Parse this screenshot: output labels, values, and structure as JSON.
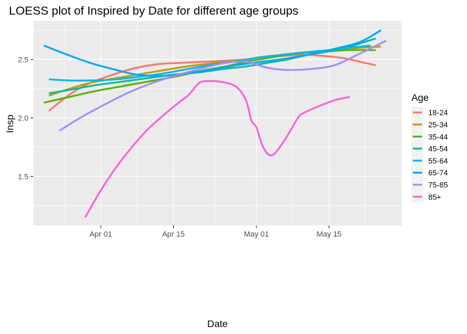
{
  "chart_data": {
    "type": "line",
    "title": "LOESS plot of Inspired by Date for different age groups",
    "xlabel": "Date",
    "ylabel": "Insp",
    "x_ticks": [
      "Apr 01",
      "Apr 15",
      "May 01",
      "May 15"
    ],
    "x_tick_values": [
      "2020-04-01",
      "2020-04-15",
      "2020-05-01",
      "2020-05-15"
    ],
    "y_ticks": [
      "1.5",
      "2.0",
      "2.5"
    ],
    "y_tick_values": [
      1.5,
      2.0,
      2.5
    ],
    "xlim": [
      "2020-03-19",
      "2020-05-29"
    ],
    "ylim": [
      1.08,
      2.83
    ],
    "grid": true,
    "legend": {
      "title": "Age",
      "position": "right"
    },
    "series": [
      {
        "name": "18-24",
        "color": "#F8766D",
        "points": [
          [
            "2020-03-22",
            2.06
          ],
          [
            "2020-03-26",
            2.2
          ],
          [
            "2020-03-30",
            2.3
          ],
          [
            "2020-04-04",
            2.38
          ],
          [
            "2020-04-08",
            2.43
          ],
          [
            "2020-04-12",
            2.46
          ],
          [
            "2020-04-16",
            2.47
          ],
          [
            "2020-04-21",
            2.48
          ],
          [
            "2020-04-25",
            2.49
          ],
          [
            "2020-04-29",
            2.5
          ],
          [
            "2020-05-02",
            2.52
          ],
          [
            "2020-05-06",
            2.53
          ],
          [
            "2020-05-10",
            2.54
          ],
          [
            "2020-05-14",
            2.53
          ],
          [
            "2020-05-18",
            2.51
          ],
          [
            "2020-05-21",
            2.48
          ],
          [
            "2020-05-24",
            2.45
          ]
        ]
      },
      {
        "name": "25-34",
        "color": "#C49A00",
        "points": [
          [
            "2020-03-22",
            2.19
          ],
          [
            "2020-03-26",
            2.25
          ],
          [
            "2020-03-30",
            2.3
          ],
          [
            "2020-04-04",
            2.34
          ],
          [
            "2020-04-08",
            2.37
          ],
          [
            "2020-04-12",
            2.4
          ],
          [
            "2020-04-16",
            2.43
          ],
          [
            "2020-04-21",
            2.46
          ],
          [
            "2020-04-25",
            2.48
          ],
          [
            "2020-04-29",
            2.5
          ],
          [
            "2020-05-02",
            2.52
          ],
          [
            "2020-05-06",
            2.54
          ],
          [
            "2020-05-10",
            2.56
          ],
          [
            "2020-05-14",
            2.57
          ],
          [
            "2020-05-18",
            2.59
          ],
          [
            "2020-05-21",
            2.6
          ],
          [
            "2020-05-25",
            2.61
          ]
        ]
      },
      {
        "name": "35-44",
        "color": "#53B400",
        "points": [
          [
            "2020-03-21",
            2.13
          ],
          [
            "2020-03-26",
            2.18
          ],
          [
            "2020-03-31",
            2.23
          ],
          [
            "2020-04-05",
            2.27
          ],
          [
            "2020-04-10",
            2.31
          ],
          [
            "2020-04-15",
            2.35
          ],
          [
            "2020-04-20",
            2.4
          ],
          [
            "2020-04-25",
            2.44
          ],
          [
            "2020-04-29",
            2.48
          ],
          [
            "2020-05-03",
            2.51
          ],
          [
            "2020-05-07",
            2.54
          ],
          [
            "2020-05-11",
            2.56
          ],
          [
            "2020-05-15",
            2.57
          ],
          [
            "2020-05-19",
            2.58
          ],
          [
            "2020-05-24",
            2.58
          ]
        ]
      },
      {
        "name": "45-54",
        "color": "#00C094",
        "points": [
          [
            "2020-03-22",
            2.21
          ],
          [
            "2020-03-26",
            2.24
          ],
          [
            "2020-03-31",
            2.28
          ],
          [
            "2020-04-05",
            2.31
          ],
          [
            "2020-04-10",
            2.34
          ],
          [
            "2020-04-15",
            2.37
          ],
          [
            "2020-04-20",
            2.39
          ],
          [
            "2020-04-25",
            2.42
          ],
          [
            "2020-04-29",
            2.44
          ],
          [
            "2020-05-03",
            2.47
          ],
          [
            "2020-05-07",
            2.5
          ],
          [
            "2020-05-11",
            2.54
          ],
          [
            "2020-05-15",
            2.57
          ],
          [
            "2020-05-19",
            2.61
          ],
          [
            "2020-05-24",
            2.68
          ]
        ]
      },
      {
        "name": "55-64",
        "color": "#00B6EB",
        "points": [
          [
            "2020-03-22",
            2.33
          ],
          [
            "2020-03-26",
            2.32
          ],
          [
            "2020-03-30",
            2.32
          ],
          [
            "2020-04-04",
            2.33
          ],
          [
            "2020-04-08",
            2.35
          ],
          [
            "2020-04-13",
            2.38
          ],
          [
            "2020-04-18",
            2.42
          ],
          [
            "2020-04-23",
            2.46
          ],
          [
            "2020-04-28",
            2.49
          ],
          [
            "2020-05-02",
            2.52
          ],
          [
            "2020-05-06",
            2.54
          ],
          [
            "2020-05-10",
            2.56
          ],
          [
            "2020-05-15",
            2.58
          ],
          [
            "2020-05-19",
            2.6
          ],
          [
            "2020-05-23",
            2.62
          ]
        ]
      },
      {
        "name": "65-74",
        "color": "#06A4FF",
        "points": [
          [
            "2020-03-21",
            2.62
          ],
          [
            "2020-03-25",
            2.55
          ],
          [
            "2020-03-30",
            2.47
          ],
          [
            "2020-04-04",
            2.41
          ],
          [
            "2020-04-08",
            2.37
          ],
          [
            "2020-04-13",
            2.36
          ],
          [
            "2020-04-17",
            2.38
          ],
          [
            "2020-04-22",
            2.41
          ],
          [
            "2020-04-27",
            2.45
          ],
          [
            "2020-05-02",
            2.48
          ],
          [
            "2020-05-07",
            2.51
          ],
          [
            "2020-05-12",
            2.55
          ],
          [
            "2020-05-16",
            2.59
          ],
          [
            "2020-05-21",
            2.65
          ],
          [
            "2020-05-25",
            2.75
          ]
        ]
      },
      {
        "name": "75-85",
        "color": "#A58AFF",
        "points": [
          [
            "2020-03-24",
            1.89
          ],
          [
            "2020-03-28",
            2.0
          ],
          [
            "2020-04-02",
            2.12
          ],
          [
            "2020-04-06",
            2.21
          ],
          [
            "2020-04-11",
            2.3
          ],
          [
            "2020-04-16",
            2.37
          ],
          [
            "2020-04-21",
            2.43
          ],
          [
            "2020-04-25",
            2.47
          ],
          [
            "2020-04-29",
            2.48
          ],
          [
            "2020-05-03",
            2.43
          ],
          [
            "2020-05-07",
            2.41
          ],
          [
            "2020-05-12",
            2.42
          ],
          [
            "2020-05-16",
            2.45
          ],
          [
            "2020-05-20",
            2.53
          ],
          [
            "2020-05-26",
            2.66
          ]
        ]
      },
      {
        "name": "85+",
        "color": "#FB61D7",
        "points": [
          [
            "2020-03-29",
            1.15
          ],
          [
            "2020-04-01",
            1.38
          ],
          [
            "2020-04-04",
            1.58
          ],
          [
            "2020-04-07",
            1.75
          ],
          [
            "2020-04-10",
            1.9
          ],
          [
            "2020-04-13",
            2.02
          ],
          [
            "2020-04-16",
            2.13
          ],
          [
            "2020-04-18",
            2.2
          ],
          [
            "2020-04-20",
            2.3
          ],
          [
            "2020-04-22",
            2.315
          ],
          [
            "2020-04-24",
            2.31
          ],
          [
            "2020-04-27",
            2.27
          ],
          [
            "2020-04-29",
            2.15
          ],
          [
            "2020-04-30",
            1.98
          ],
          [
            "2020-05-01",
            1.92
          ],
          [
            "2020-05-02",
            1.78
          ],
          [
            "2020-05-03",
            1.7
          ],
          [
            "2020-05-04",
            1.68
          ],
          [
            "2020-05-05",
            1.72
          ],
          [
            "2020-05-07",
            1.85
          ],
          [
            "2020-05-09",
            2.0
          ],
          [
            "2020-05-10",
            2.04
          ],
          [
            "2020-05-13",
            2.1
          ],
          [
            "2020-05-16",
            2.15
          ],
          [
            "2020-05-19",
            2.18
          ]
        ]
      }
    ]
  }
}
